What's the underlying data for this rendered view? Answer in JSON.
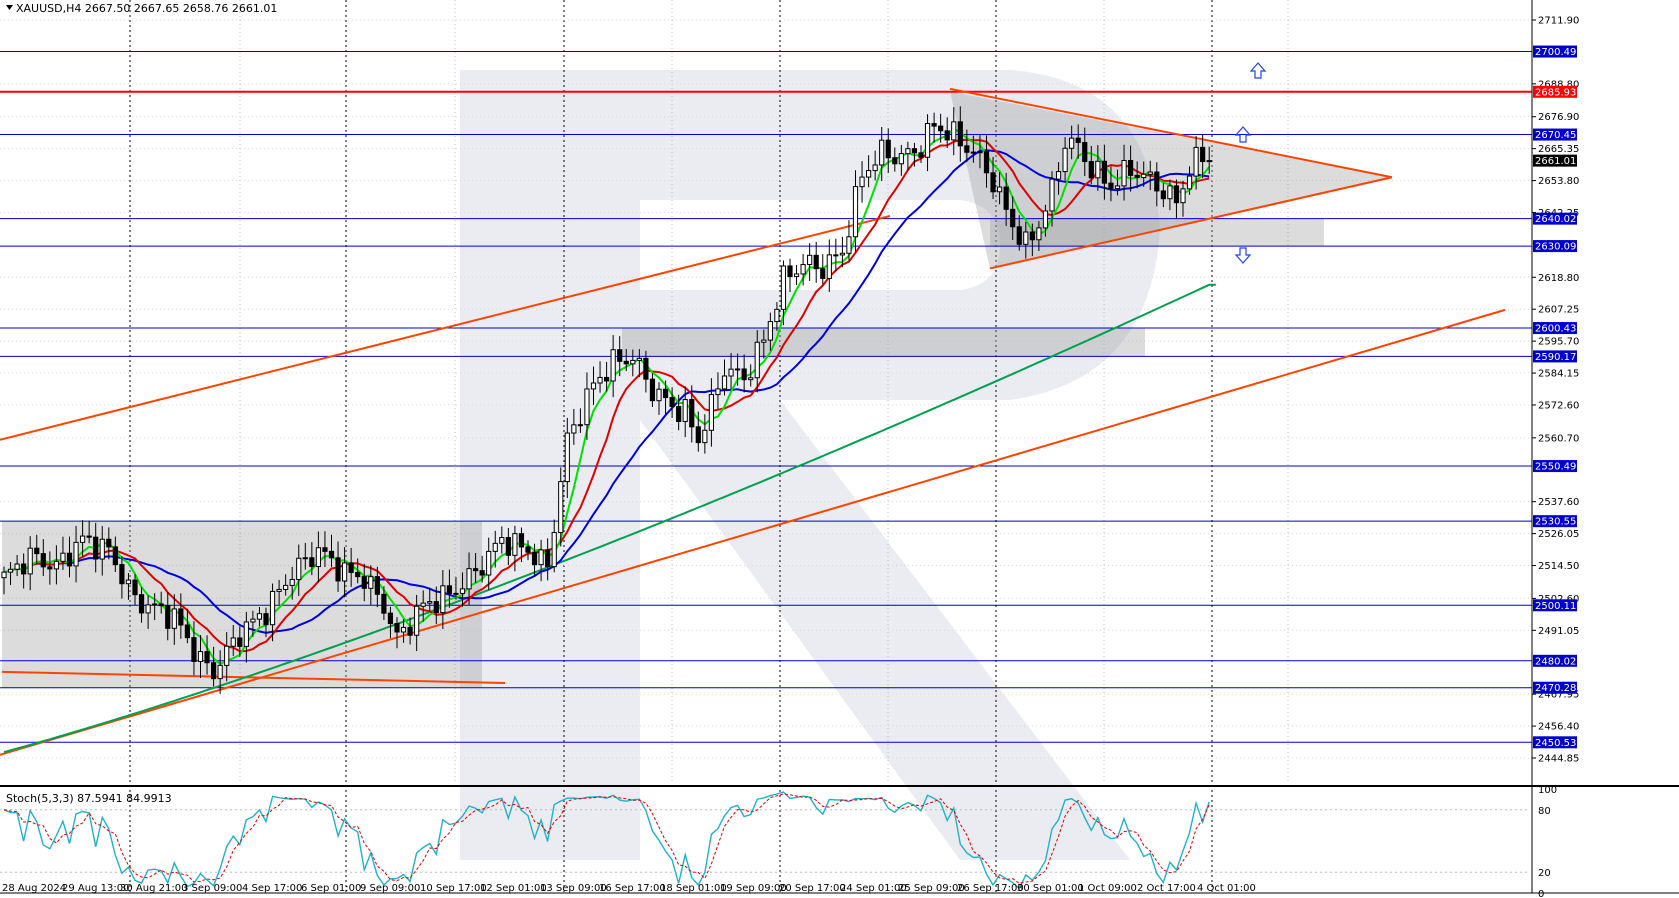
{
  "header": {
    "symbol": "XAUUSD,H4",
    "ohlc": "2667.50 2667.65 2658.76 2661.01",
    "symbol_label": "XAUUSD,H4  2667.50 2667.65 2658.76 2661.01"
  },
  "oscillator": {
    "label": "Stoch(5,3,3) 87.5941 84.9913",
    "levels": [
      "100",
      "80",
      "20",
      "0"
    ]
  },
  "colors": {
    "resistance_red": "#ff0000",
    "level_blue": "#0000cc",
    "trend_orange": "#ff4400",
    "ma_green": "#00e000",
    "ma_red": "#e00000",
    "ma_blue": "#0000e0",
    "ma_long": "#00a050",
    "stoch_main": "#20b2c8",
    "stoch_signal": "#e00000",
    "price_tag_bg": "#000000"
  },
  "chart_data": {
    "type": "candlestick",
    "y_ticks": [
      "2711.90",
      "2688.80",
      "2676.90",
      "2665.35",
      "2653.80",
      "2642.25",
      "2618.80",
      "2607.25",
      "2595.70",
      "2584.15",
      "2572.60",
      "2560.70",
      "2537.60",
      "2526.05",
      "2514.50",
      "2502.60",
      "2491.05",
      "2467.95",
      "2456.40",
      "2444.85"
    ],
    "x_ticks": [
      "28 Aug 2024",
      "29 Aug 13:00",
      "30 Aug 21:00",
      "3 Sep 09:00",
      "4 Sep 17:00",
      "6 Sep 01:00",
      "9 Sep 09:00",
      "10 Sep 17:00",
      "12 Sep 01:00",
      "13 Sep 09:00",
      "16 Sep 17:00",
      "18 Sep 01:00",
      "19 Sep 09:00",
      "20 Sep 17:00",
      "24 Sep 01:00",
      "25 Sep 09:00",
      "26 Sep 17:00",
      "30 Sep 01:00",
      "1 Oct 09:00",
      "2 Oct 17:00",
      "4 Oct 01:00"
    ],
    "levels": [
      {
        "value": 2700.49,
        "label": "2700.49",
        "kind": "support"
      },
      {
        "value": 2685.93,
        "label": "2685.93",
        "kind": "resistance"
      },
      {
        "value": 2670.45,
        "label": "2670.45",
        "kind": "support"
      },
      {
        "value": 2640.02,
        "label": "2640.02",
        "kind": "support"
      },
      {
        "value": 2630.09,
        "label": "2630.09",
        "kind": "support"
      },
      {
        "value": 2600.43,
        "label": "2600.43",
        "kind": "support"
      },
      {
        "value": 2590.17,
        "label": "2590.17",
        "kind": "support"
      },
      {
        "value": 2550.49,
        "label": "2550.49",
        "kind": "support"
      },
      {
        "value": 2530.55,
        "label": "2530.55",
        "kind": "support"
      },
      {
        "value": 2500.11,
        "label": "2500.11",
        "kind": "support"
      },
      {
        "value": 2480.02,
        "label": "2480.02",
        "kind": "support"
      },
      {
        "value": 2470.28,
        "label": "2470.28",
        "kind": "support"
      },
      {
        "value": 2450.53,
        "label": "2450.53",
        "kind": "support"
      }
    ],
    "current_price": {
      "value": 2661.01,
      "label": "2661.01"
    },
    "anchors": [
      [
        0,
        2510
      ],
      [
        4,
        2518
      ],
      [
        8,
        2514
      ],
      [
        12,
        2524
      ],
      [
        16,
        2520
      ],
      [
        20,
        2502
      ],
      [
        26,
        2496
      ],
      [
        30,
        2480
      ],
      [
        32,
        2476
      ],
      [
        36,
        2490
      ],
      [
        40,
        2498
      ],
      [
        44,
        2512
      ],
      [
        48,
        2520
      ],
      [
        52,
        2512
      ],
      [
        55,
        2510
      ],
      [
        58,
        2500
      ],
      [
        60,
        2488
      ],
      [
        64,
        2500
      ],
      [
        68,
        2504
      ],
      [
        72,
        2512
      ],
      [
        76,
        2524
      ],
      [
        80,
        2520
      ],
      [
        83,
        2514
      ],
      [
        86,
        2560
      ],
      [
        90,
        2580
      ],
      [
        93,
        2588
      ],
      [
        96,
        2590
      ],
      [
        99,
        2578
      ],
      [
        102,
        2572
      ],
      [
        104,
        2570
      ],
      [
        106,
        2560
      ],
      [
        108,
        2572
      ],
      [
        110,
        2586
      ],
      [
        113,
        2582
      ],
      [
        116,
        2596
      ],
      [
        119,
        2618
      ],
      [
        122,
        2624
      ],
      [
        125,
        2622
      ],
      [
        128,
        2628
      ],
      [
        131,
        2656
      ],
      [
        134,
        2664
      ],
      [
        137,
        2662
      ],
      [
        140,
        2666
      ],
      [
        142,
        2674
      ],
      [
        145,
        2670
      ],
      [
        148,
        2664
      ],
      [
        150,
        2658
      ],
      [
        152,
        2648
      ],
      [
        154,
        2638
      ],
      [
        156,
        2630
      ],
      [
        158,
        2638
      ],
      [
        160,
        2650
      ],
      [
        162,
        2668
      ],
      [
        164,
        2666
      ],
      [
        166,
        2658
      ],
      [
        169,
        2652
      ],
      [
        172,
        2658
      ],
      [
        175,
        2654
      ],
      [
        177,
        2650
      ],
      [
        179,
        2646
      ],
      [
        181,
        2658
      ],
      [
        183,
        2663
      ],
      [
        184,
        2661
      ]
    ]
  }
}
